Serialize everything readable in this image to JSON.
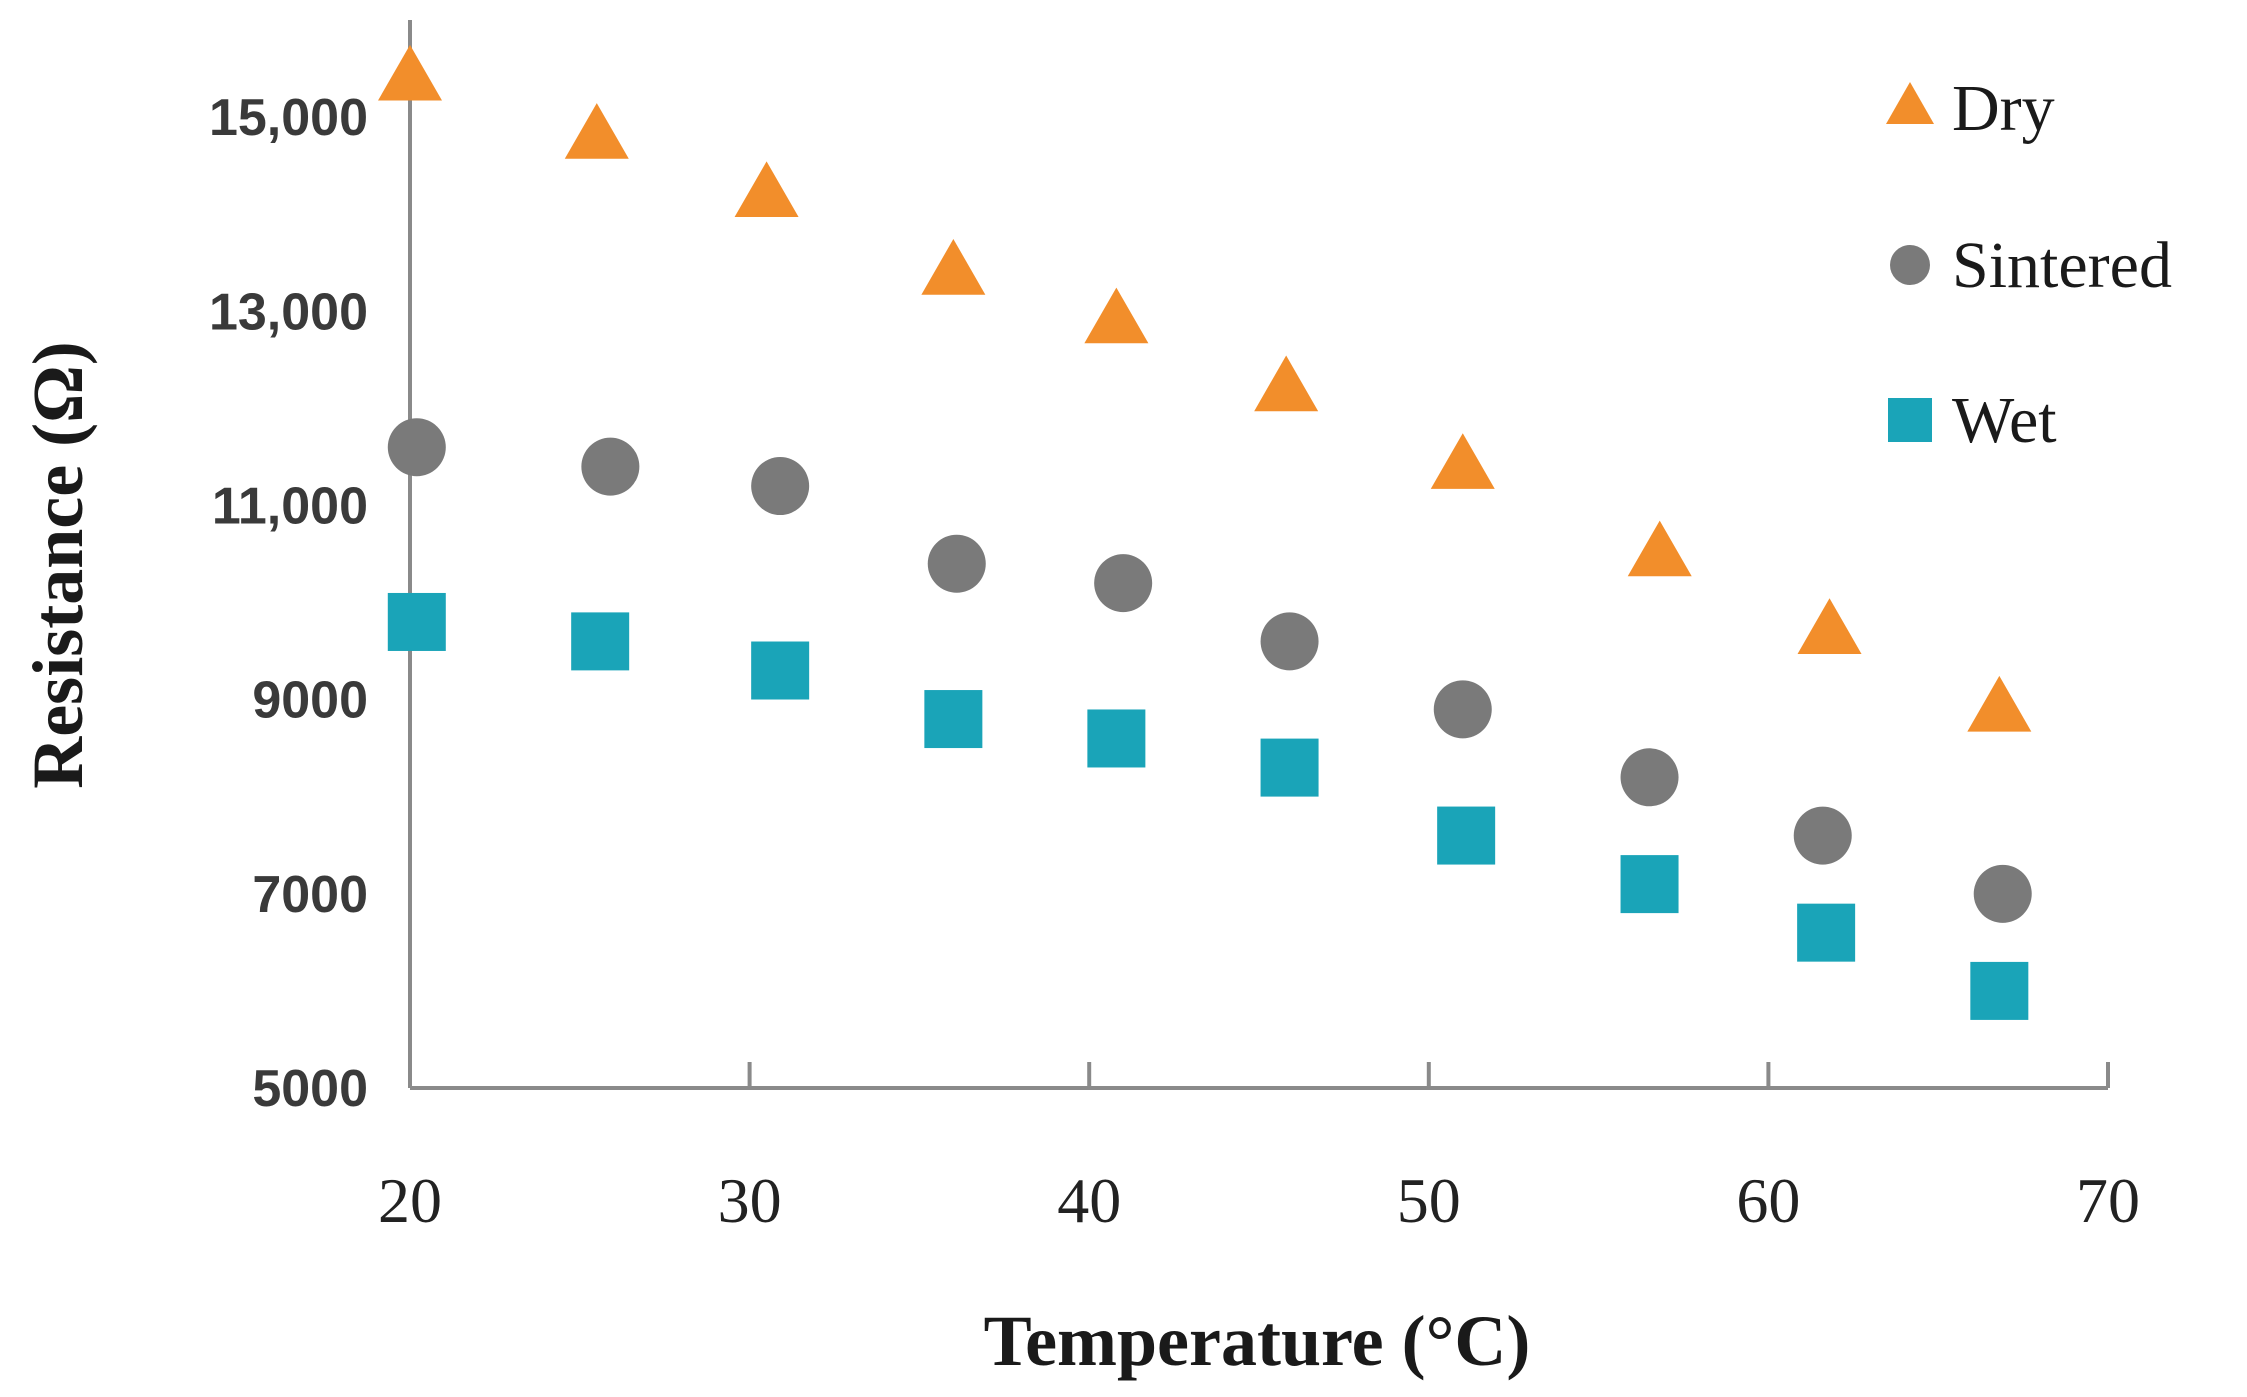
{
  "chart_data": {
    "type": "scatter",
    "title": "",
    "xlabel": "Temperature (°C)",
    "ylabel": "Resistance (Ω)",
    "xlim": [
      20,
      70
    ],
    "ylim": [
      5000,
      16000
    ],
    "x_ticks": [
      20,
      30,
      40,
      50,
      60,
      70
    ],
    "x_tick_labels": [
      "20",
      "30",
      "40",
      "50",
      "60",
      "70"
    ],
    "y_ticks": [
      5000,
      7000,
      9000,
      11000,
      13000,
      15000
    ],
    "y_tick_labels": [
      "5000",
      "7000",
      "9000",
      "11,000",
      "13,000",
      "15,000"
    ],
    "grid": false,
    "legend_position": "top-right",
    "series": [
      {
        "name": "Dry",
        "marker": "triangle",
        "color": "#f28e2b",
        "x": [
          20,
          25.5,
          30.5,
          36,
          40.8,
          45.8,
          51,
          56.8,
          61.8,
          66.8
        ],
        "y": [
          15400,
          14800,
          14200,
          13400,
          12900,
          12200,
          11400,
          10500,
          9700,
          8900
        ]
      },
      {
        "name": "Sintered",
        "marker": "circle",
        "color": "#7a7a7a",
        "x": [
          20.2,
          25.9,
          30.9,
          36.1,
          41,
          45.9,
          51,
          56.5,
          61.6,
          66.9
        ],
        "y": [
          11600,
          11400,
          11200,
          10400,
          10200,
          9600,
          8900,
          8200,
          7600,
          7000
        ]
      },
      {
        "name": "Wet",
        "marker": "square",
        "color": "#1aa4b8",
        "x": [
          20.2,
          25.6,
          30.9,
          36,
          40.8,
          45.9,
          51.1,
          56.5,
          61.7,
          66.8
        ],
        "y": [
          9800,
          9600,
          9300,
          8800,
          8600,
          8300,
          7600,
          7100,
          6600,
          6000
        ]
      }
    ]
  }
}
